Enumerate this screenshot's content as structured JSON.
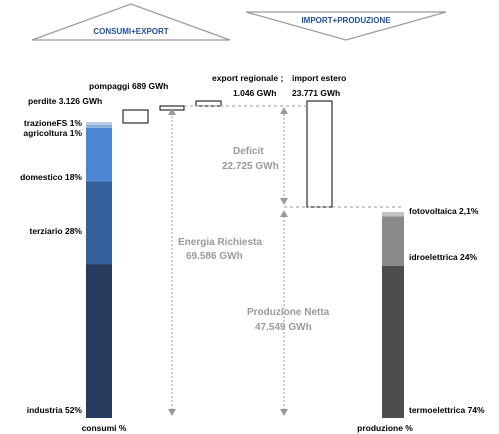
{
  "header": {
    "left": "CONSUMI+EXPORT",
    "right": "IMPORT+PRODUZIONE",
    "accent": "#1f4e9c"
  },
  "chart_data": {
    "type": "bar",
    "consumi": {
      "axis_label": "consumi %",
      "segments": [
        {
          "label": "industria 52%",
          "value": 52,
          "color": "#263b5e"
        },
        {
          "label": "terziario 28%",
          "value": 28,
          "color": "#34609c"
        },
        {
          "label": "domestico 18%",
          "value": 18,
          "color": "#4b86d2"
        },
        {
          "label": "agricoltura 1%",
          "value": 1,
          "color": "#8ab0de"
        },
        {
          "label": "trazioneFS 1%",
          "value": 1,
          "color": "#b8cde8"
        }
      ]
    },
    "produzione": {
      "axis_label": "produzione %",
      "segments": [
        {
          "label": "termoelettrica 74%",
          "value": 74,
          "color": "#4d4d4d"
        },
        {
          "label": "idroelettrica 24%",
          "value": 24,
          "color": "#8a8a8a"
        },
        {
          "label": "fotovoltaica 2,1%",
          "value": 2.1,
          "color": "#c2c2c2"
        }
      ]
    },
    "flows": [
      {
        "label": "perdite 3.126 GWh",
        "value": 3126
      },
      {
        "label": "pompaggi 689 GWh",
        "value": 689
      },
      {
        "label": "export regionale  ;",
        "label2": "1.046 GWh",
        "value": 1046
      },
      {
        "label": "import estero",
        "label2": "23.771 GWh",
        "value": 23771
      }
    ],
    "annotations": {
      "energia": {
        "title": "Energia Richiesta",
        "value": "69.586 GWh"
      },
      "deficit": {
        "title": "Deficit",
        "value": "22.725 GWh"
      },
      "produzione": {
        "title": "Produzione Netta",
        "value": "47.549 GWh"
      }
    }
  }
}
